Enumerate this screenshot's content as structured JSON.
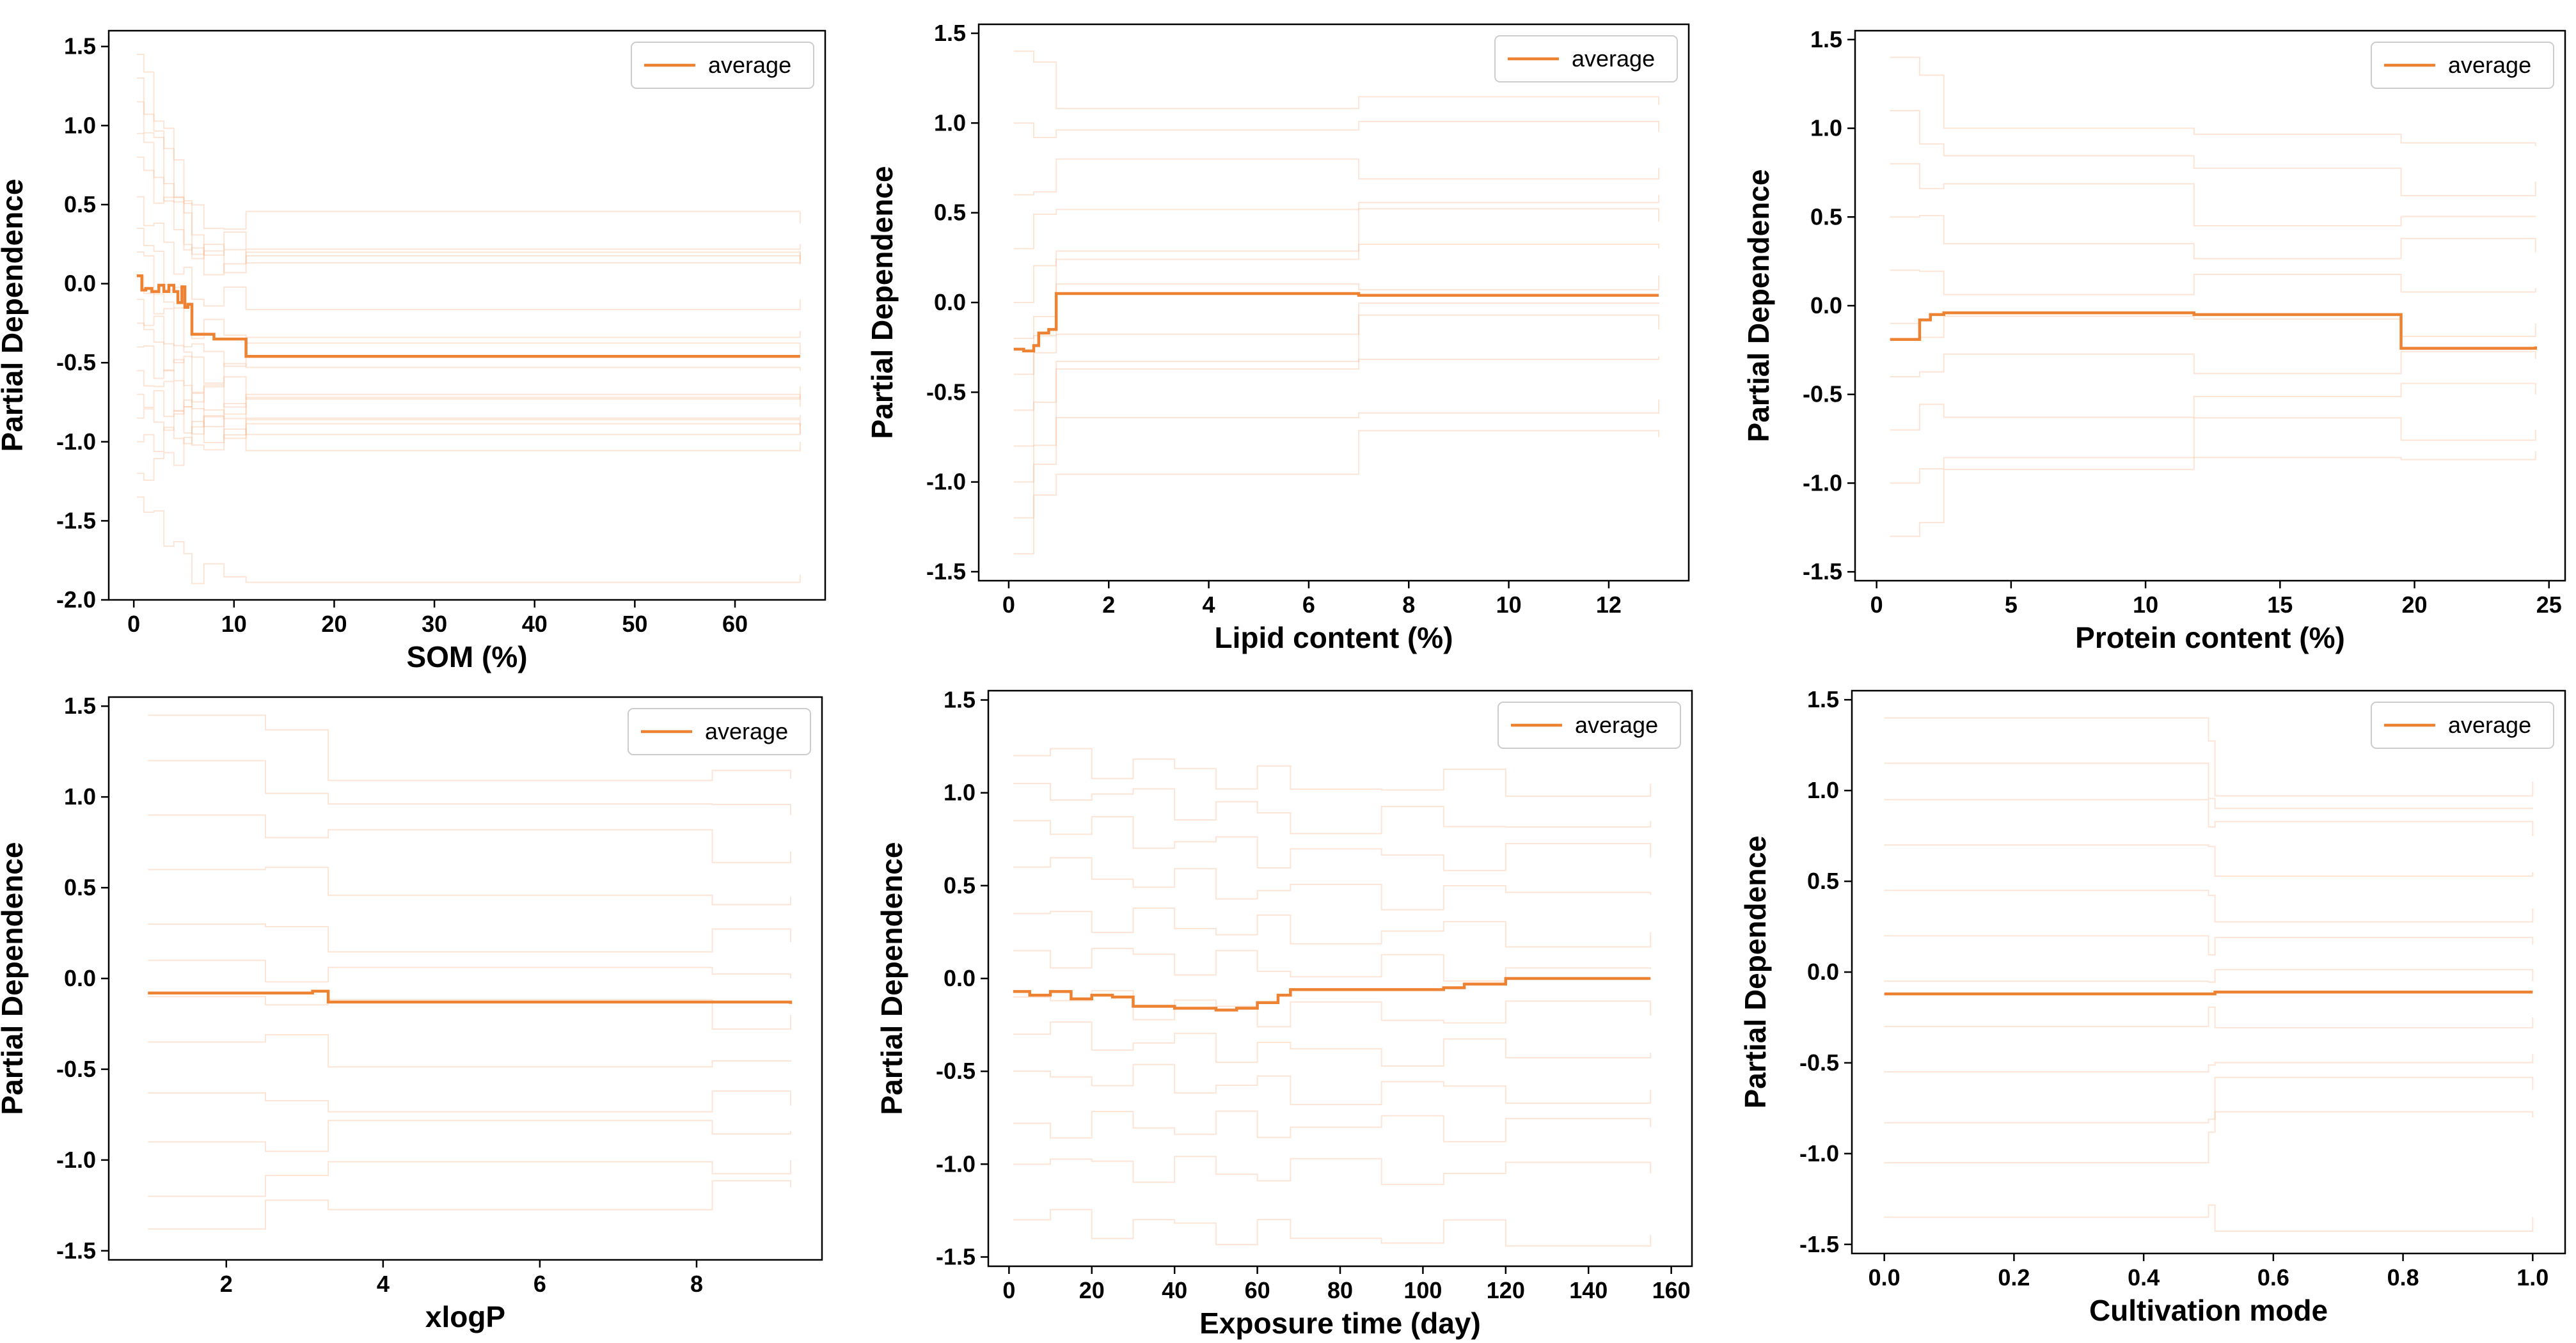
{
  "figure": {
    "line_color": "#EE8233",
    "ice_color": "#F6B58A",
    "frame_color": "#000000"
  },
  "chart_data": [
    {
      "type": "line",
      "title": "",
      "xlabel": "SOM (%)",
      "ylabel": "Partial Dependence",
      "xlim": [
        -2.5,
        69
      ],
      "ylim": [
        -2.0,
        1.6
      ],
      "xticks": [
        0,
        10,
        20,
        30,
        40,
        50,
        60
      ],
      "yticks": [
        -2.0,
        -1.5,
        -1.0,
        -0.5,
        0.0,
        0.5,
        1.0,
        1.5
      ],
      "legend": {
        "label": "average",
        "position": "top-right"
      },
      "average": {
        "x": [
          0.3,
          0.8,
          1.2,
          1.8,
          2.5,
          3.0,
          3.5,
          4.0,
          4.4,
          4.8,
          5.1,
          5.4,
          5.8,
          7.0,
          8.0,
          9.0,
          11.2,
          66.5
        ],
        "y": [
          0.05,
          -0.04,
          -0.03,
          -0.05,
          -0.01,
          -0.05,
          -0.01,
          -0.05,
          -0.12,
          -0.02,
          -0.15,
          -0.13,
          -0.32,
          -0.32,
          -0.35,
          -0.35,
          -0.46,
          -0.46
        ]
      },
      "ice": {
        "x": [
          0.3,
          1.0,
          2.0,
          3.0,
          4.0,
          5.0,
          5.8,
          7.0,
          9.0,
          11.2,
          66.5
        ],
        "start": [
          1.45,
          1.3,
          1.15,
          0.95,
          0.8,
          0.55,
          0.35,
          0.2,
          0.05,
          -0.1,
          -0.25,
          -0.4,
          -0.55,
          -0.7,
          -0.85,
          -1.0,
          -1.2,
          -1.35
        ],
        "end": [
          0.38,
          0.25,
          0.2,
          0.15,
          0.12,
          -0.1,
          -0.3,
          -0.45,
          -0.55,
          -0.65,
          -0.72,
          -0.78,
          -0.83,
          -0.88,
          -0.9,
          -0.95,
          -1.0,
          -1.84
        ]
      }
    },
    {
      "type": "line",
      "title": "",
      "xlabel": "Lipid content (%)",
      "ylabel": "Partial Dependence",
      "xlim": [
        -0.6,
        13.6
      ],
      "ylim": [
        -1.55,
        1.55
      ],
      "xticks": [
        0,
        2,
        4,
        6,
        8,
        10,
        12
      ],
      "yticks": [
        -1.5,
        -1.0,
        -0.5,
        0.0,
        0.5,
        1.0,
        1.5
      ],
      "legend": {
        "label": "average",
        "position": "top-right"
      },
      "average": {
        "x": [
          0.1,
          0.3,
          0.5,
          0.6,
          0.8,
          0.95,
          7.0,
          13.0
        ],
        "y": [
          -0.26,
          -0.27,
          -0.24,
          -0.17,
          -0.15,
          0.05,
          0.04,
          0.04
        ]
      },
      "ice": {
        "x": [
          0.1,
          0.5,
          0.95,
          7.0,
          13.0
        ],
        "start": [
          1.4,
          1.0,
          0.6,
          0.3,
          0.0,
          -0.2,
          -0.4,
          -0.6,
          -0.8,
          -1.0,
          -1.2,
          -1.4
        ],
        "end": [
          1.1,
          0.95,
          0.75,
          0.6,
          0.45,
          0.3,
          0.15,
          0.0,
          -0.15,
          -0.3,
          -0.54,
          -0.75
        ]
      }
    },
    {
      "type": "line",
      "title": "",
      "xlabel": "Protein content (%)",
      "ylabel": "Partial Dependence",
      "xlim": [
        -0.8,
        25.6
      ],
      "ylim": [
        -1.55,
        1.55
      ],
      "xticks": [
        0,
        5,
        10,
        15,
        20,
        25
      ],
      "yticks": [
        -1.5,
        -1.0,
        -0.5,
        0.0,
        0.5,
        1.0,
        1.5
      ],
      "legend": {
        "label": "average",
        "position": "top-right"
      },
      "average": {
        "x": [
          0.5,
          1.2,
          1.6,
          2.0,
          2.5,
          11.8,
          19.5,
          24.5
        ],
        "y": [
          -0.19,
          -0.19,
          -0.08,
          -0.05,
          -0.04,
          -0.05,
          -0.24,
          -0.23
        ]
      },
      "ice": {
        "x": [
          0.5,
          1.6,
          2.5,
          11.8,
          19.5,
          24.5
        ],
        "start": [
          1.4,
          1.1,
          0.8,
          0.5,
          0.2,
          -0.1,
          -0.4,
          -0.7,
          -1.0,
          -1.3
        ],
        "end": [
          0.9,
          0.7,
          0.5,
          0.3,
          0.1,
          -0.1,
          -0.3,
          -0.5,
          -0.7,
          -0.82
        ]
      }
    },
    {
      "type": "line",
      "title": "",
      "xlabel": "xlogP",
      "ylabel": "Partial Dependence",
      "xlim": [
        0.5,
        9.6
      ],
      "ylim": [
        -1.55,
        1.55
      ],
      "xticks": [
        2,
        4,
        6,
        8
      ],
      "yticks": [
        -1.5,
        -1.0,
        -0.5,
        0.0,
        0.5,
        1.0,
        1.5
      ],
      "legend": {
        "label": "average",
        "position": "top-right"
      },
      "average": {
        "x": [
          1.0,
          3.1,
          3.3,
          8.2,
          9.2
        ],
        "y": [
          -0.08,
          -0.07,
          -0.13,
          -0.13,
          -0.14
        ]
      },
      "ice": {
        "x": [
          1.0,
          2.5,
          3.3,
          8.2,
          9.2
        ],
        "start": [
          1.45,
          1.2,
          0.9,
          0.6,
          0.3,
          0.1,
          -0.1,
          -0.35,
          -0.63,
          -0.9,
          -1.2,
          -1.38
        ],
        "end": [
          1.1,
          0.9,
          0.7,
          0.45,
          0.2,
          0.0,
          -0.2,
          -0.45,
          -0.7,
          -0.84,
          -1.0,
          -1.15
        ]
      }
    },
    {
      "type": "line",
      "title": "",
      "xlabel": "Exposure time (day)",
      "ylabel": "Partial Dependence",
      "xlim": [
        -5,
        165
      ],
      "ylim": [
        -1.55,
        1.55
      ],
      "xticks": [
        0,
        20,
        40,
        60,
        80,
        100,
        120,
        140,
        160
      ],
      "yticks": [
        -1.5,
        -1.0,
        -0.5,
        0.0,
        0.5,
        1.0,
        1.5
      ],
      "legend": {
        "label": "average",
        "position": "top-right"
      },
      "average": {
        "x": [
          1,
          5,
          10,
          15,
          20,
          25,
          30,
          35,
          40,
          45,
          50,
          55,
          60,
          62,
          65,
          68,
          75,
          105,
          110,
          120,
          155
        ],
        "y": [
          -0.07,
          -0.09,
          -0.07,
          -0.11,
          -0.09,
          -0.1,
          -0.15,
          -0.15,
          -0.16,
          -0.16,
          -0.17,
          -0.16,
          -0.13,
          -0.13,
          -0.09,
          -0.06,
          -0.06,
          -0.05,
          -0.03,
          0.0,
          0.0
        ]
      },
      "ice": {
        "x": [
          1,
          10,
          20,
          30,
          40,
          50,
          60,
          68,
          90,
          105,
          120,
          155
        ],
        "start": [
          1.2,
          1.05,
          0.85,
          0.6,
          0.35,
          0.15,
          -0.1,
          -0.3,
          -0.5,
          -0.78,
          -1.0,
          -1.3
        ],
        "end": [
          1.05,
          0.85,
          0.65,
          0.45,
          0.25,
          0.05,
          -0.2,
          -0.4,
          -0.6,
          -0.8,
          -1.05,
          -1.38
        ]
      }
    },
    {
      "type": "line",
      "title": "",
      "xlabel": "Cultivation mode",
      "ylabel": "Partial Dependence",
      "xlim": [
        -0.05,
        1.05
      ],
      "ylim": [
        -1.55,
        1.55
      ],
      "xticks": [
        0.0,
        0.2,
        0.4,
        0.6,
        0.8,
        1.0
      ],
      "yticks": [
        -1.5,
        -1.0,
        -0.5,
        0.0,
        0.5,
        1.0,
        1.5
      ],
      "legend": {
        "label": "average",
        "position": "top-right"
      },
      "average": {
        "x": [
          0.0,
          0.5,
          0.51,
          1.0
        ],
        "y": [
          -0.12,
          -0.12,
          -0.11,
          -0.11
        ]
      },
      "ice": {
        "x": [
          0.0,
          0.5,
          0.51,
          1.0
        ],
        "start": [
          1.4,
          1.15,
          0.95,
          0.7,
          0.45,
          0.2,
          -0.05,
          -0.3,
          -0.55,
          -0.83,
          -1.05,
          -1.35
        ],
        "end": [
          1.05,
          0.9,
          0.75,
          0.55,
          0.35,
          0.15,
          -0.05,
          -0.25,
          -0.45,
          -0.65,
          -0.8,
          -1.35
        ]
      }
    }
  ]
}
